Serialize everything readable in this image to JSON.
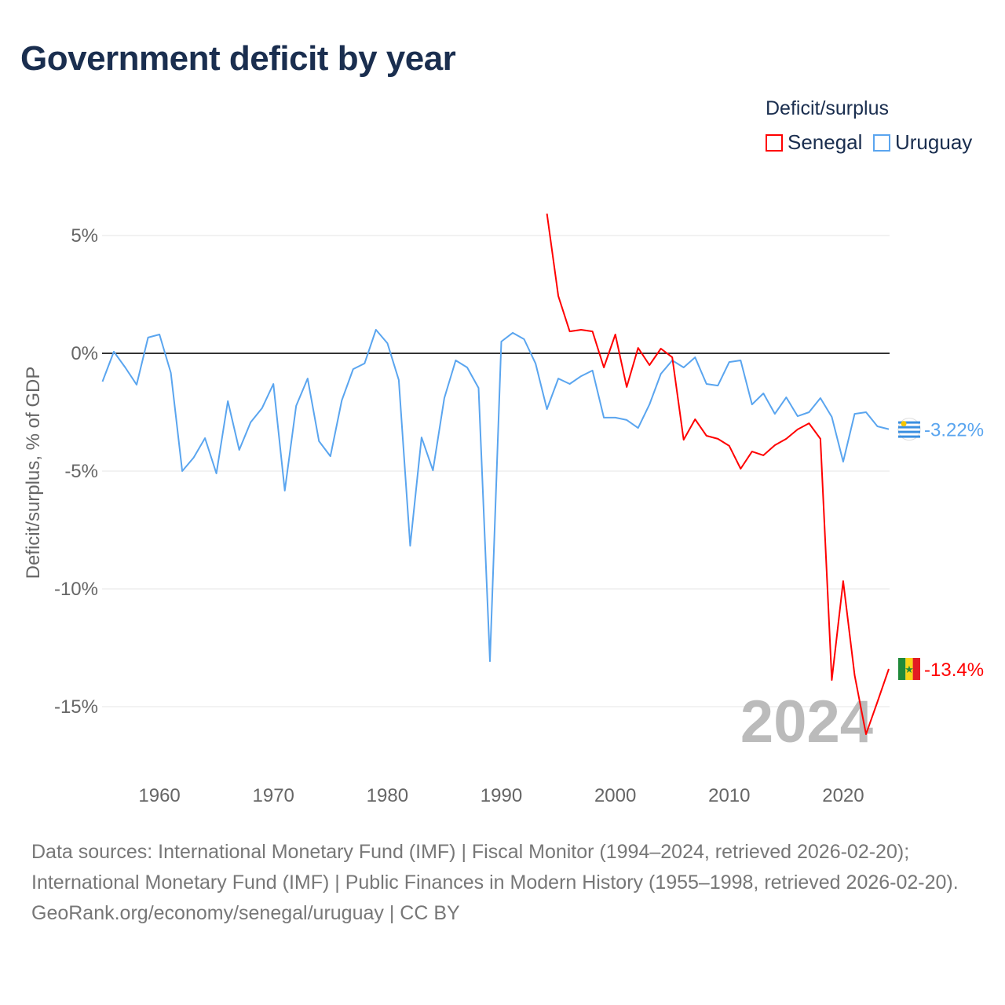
{
  "title": "Government deficit by year",
  "legend": {
    "title": "Deficit/surplus",
    "items": [
      {
        "label": "Senegal",
        "color": "#ff0000"
      },
      {
        "label": "Uruguay",
        "color": "#5aa5ef"
      }
    ]
  },
  "year_watermark": "2024",
  "footer": {
    "sources": "Data sources: International Monetary Fund (IMF) | Fiscal Monitor (1994–2024, retrieved 2026-02-20); International Monetary Fund (IMF) | Public Finances in Modern History (1955–1998, retrieved 2026-02-20).",
    "credit": "GeoRank.org/economy/senegal/uruguay | CC BY"
  },
  "chart_data": {
    "type": "line",
    "title": "Government deficit by year",
    "ylabel": "Deficit/surplus, % of GDP",
    "xlabel": "",
    "xlim": [
      1955,
      2024
    ],
    "ylim": [
      -17,
      6.5
    ],
    "xticks": [
      1960,
      1970,
      1980,
      1990,
      2000,
      2010,
      2020
    ],
    "xtick_labels": [
      "1960",
      "1970",
      "1980",
      "1990",
      "2000",
      "2010",
      "2020"
    ],
    "yticks": [
      5,
      0,
      -5,
      -10,
      -15
    ],
    "ytick_labels": [
      "5%",
      "0%",
      "-5%",
      "-10%",
      "-15%"
    ],
    "grid": true,
    "legend_position": "top-right",
    "series": [
      {
        "name": "Uruguay",
        "color": "#5aa5ef",
        "start_year": 1955,
        "end_label": "-3.22%",
        "values": [
          -1.2,
          0.07,
          -0.6,
          -1.33,
          0.67,
          0.8,
          -0.83,
          -5.0,
          -4.43,
          -3.6,
          -5.1,
          -2.03,
          -4.1,
          -2.93,
          -2.33,
          -1.3,
          -5.83,
          -2.23,
          -1.07,
          -3.73,
          -4.37,
          -2.0,
          -0.67,
          -0.43,
          1.0,
          0.43,
          -1.13,
          -8.17,
          -3.57,
          -4.97,
          -1.9,
          -0.3,
          -0.6,
          -1.47,
          -13.07,
          0.5,
          0.87,
          0.6,
          -0.43,
          -2.37,
          -1.07,
          -1.3,
          -0.97,
          -0.73,
          -2.73,
          -2.73,
          -2.83,
          -3.17,
          -2.17,
          -0.87,
          -0.3,
          -0.6,
          -0.17,
          -1.3,
          -1.37,
          -0.37,
          -0.3,
          -2.17,
          -1.7,
          -2.57,
          -1.87,
          -2.67,
          -2.5,
          -1.9,
          -2.7,
          -4.6,
          -2.57,
          -2.5,
          -3.1,
          -3.22
        ]
      },
      {
        "name": "Senegal",
        "color": "#ff0000",
        "start_year": 1994,
        "end_label": "-13.4%",
        "values": [
          5.93,
          2.43,
          0.93,
          1.0,
          0.93,
          -0.6,
          0.8,
          -1.43,
          0.23,
          -0.5,
          0.2,
          -0.17,
          -3.67,
          -2.8,
          -3.5,
          -3.63,
          -3.93,
          -4.9,
          -4.17,
          -4.33,
          -3.9,
          -3.63,
          -3.23,
          -2.97,
          -3.63,
          -13.87,
          -9.67,
          -13.67,
          -16.17,
          -14.8,
          -13.4
        ]
      }
    ]
  }
}
